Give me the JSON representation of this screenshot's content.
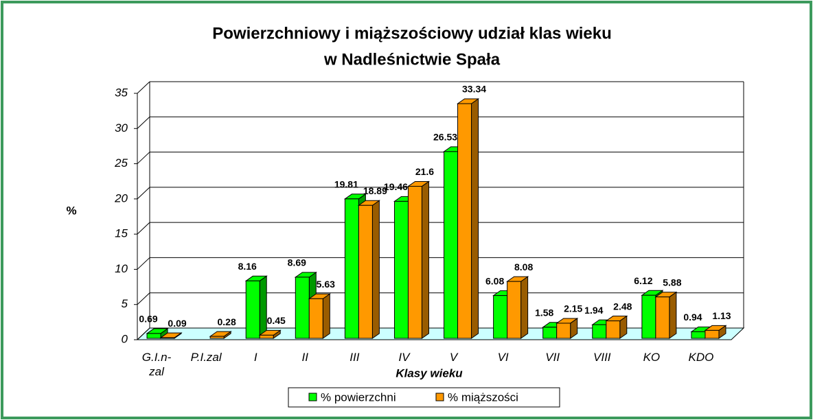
{
  "chart_data": {
    "type": "bar3d",
    "title": "Powierzchniowy i miąższościowy udział klas wieku",
    "subtitle": "w Nadleśnictwie Spała",
    "x_label": "Klasy wieku",
    "y_label": "%",
    "categories": [
      "G.I.n-zal",
      "P.I.zal",
      "I",
      "II",
      "III",
      "IV",
      "V",
      "VI",
      "VII",
      "VIII",
      "KO",
      "KDO"
    ],
    "series": [
      {
        "name": "% powierzchni",
        "color": "#00ff00",
        "side": "#009900",
        "values": [
          0.69,
          null,
          8.16,
          8.69,
          19.81,
          19.46,
          26.53,
          6.08,
          1.58,
          1.94,
          6.12,
          0.94
        ]
      },
      {
        "name": "% miąższości",
        "color": "#ff9900",
        "side": "#995c00",
        "values": [
          0.09,
          0.28,
          0.45,
          5.63,
          18.89,
          21.6,
          33.34,
          8.08,
          2.15,
          2.48,
          5.88,
          1.13
        ]
      }
    ],
    "ylim": [
      0,
      35
    ],
    "yticks": [
      0,
      5,
      10,
      15,
      20,
      25,
      30,
      35
    ],
    "grid": true,
    "legend": "bottom"
  }
}
